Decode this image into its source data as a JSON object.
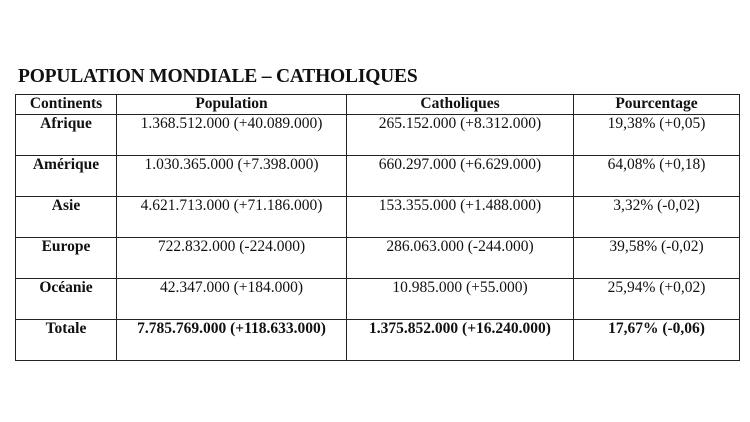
{
  "title": "POPULATION MONDIALE – CATHOLIQUES",
  "table": {
    "headers": [
      "Continents",
      "Population",
      "Catholiques",
      "Pourcentage"
    ],
    "rows": [
      [
        "Afrique",
        "1.368.512.000 (+40.089.000)",
        "265.152.000 (+8.312.000)",
        "19,38% (+0,05)"
      ],
      [
        "Amérique",
        "1.030.365.000 (+7.398.000)",
        "660.297.000 (+6.629.000)",
        "64,08% (+0,18)"
      ],
      [
        "Asie",
        "4.621.713.000 (+71.186.000)",
        "153.355.000 (+1.488.000)",
        "3,32% (-0,02)"
      ],
      [
        "Europe",
        "722.832.000 (-224.000)",
        "286.063.000 (-244.000)",
        "39,58% (-0,02)"
      ],
      [
        "Océanie",
        "42.347.000 (+184.000)",
        "10.985.000 (+55.000)",
        "25,94% (+0,02)"
      ],
      [
        "Totale",
        "7.785.769.000 (+118.633.000)",
        "1.375.852.000 (+16.240.000)",
        "17,67% (-0,06)"
      ]
    ]
  }
}
